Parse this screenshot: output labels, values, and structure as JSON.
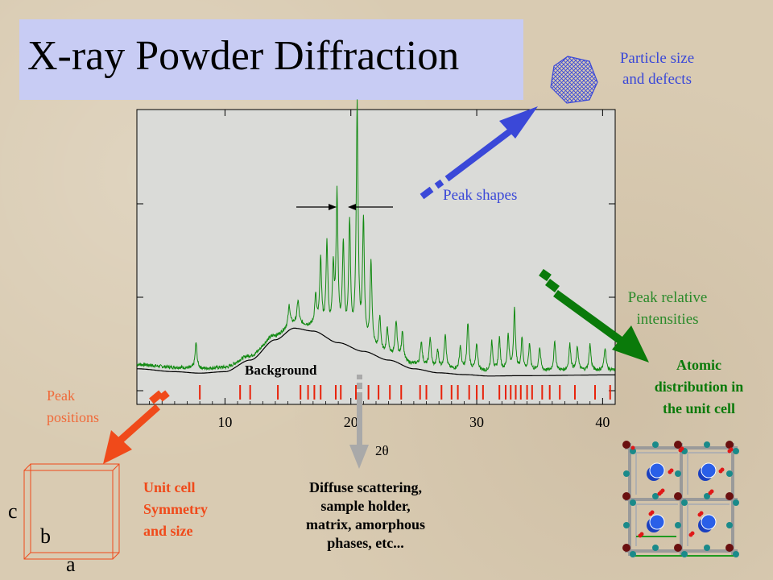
{
  "title": "X-ray Powder Diffraction",
  "labels": {
    "particle_size": [
      "Particle size",
      "and defects"
    ],
    "peak_shapes": "Peak shapes",
    "peak_relative": [
      "Peak relative",
      "intensities"
    ],
    "atomic_distribution": [
      "Atomic",
      "distribution in",
      "the unit cell"
    ],
    "peak_positions": [
      "Peak",
      "positions"
    ],
    "unit_cell": [
      "Unit cell",
      "Symmetry",
      "and size"
    ],
    "background": "Background",
    "diffuse": [
      "Diffuse scattering,",
      "sample holder,",
      "matrix, amorphous",
      "phases, etc..."
    ],
    "axis_c": "c",
    "axis_b": "b",
    "axis_a": "a"
  },
  "chart_data": {
    "type": "line",
    "xlabel": "2θ",
    "ylabel": "",
    "xlim": [
      3,
      41
    ],
    "xticks": [
      10,
      20,
      30,
      40
    ],
    "xtick_labels": [
      "10",
      "20",
      "30",
      "40"
    ],
    "peaks": [
      {
        "x": 7.7,
        "h": 0.09
      },
      {
        "x": 15.1,
        "h": 0.07
      },
      {
        "x": 15.8,
        "h": 0.08
      },
      {
        "x": 17.2,
        "h": 0.1
      },
      {
        "x": 17.6,
        "h": 0.23
      },
      {
        "x": 18.1,
        "h": 0.3
      },
      {
        "x": 18.6,
        "h": 0.22
      },
      {
        "x": 18.9,
        "h": 0.48
      },
      {
        "x": 19.4,
        "h": 0.31
      },
      {
        "x": 19.9,
        "h": 0.39
      },
      {
        "x": 20.5,
        "h": 0.82
      },
      {
        "x": 21.0,
        "h": 0.42
      },
      {
        "x": 21.6,
        "h": 0.29
      },
      {
        "x": 22.3,
        "h": 0.12
      },
      {
        "x": 22.9,
        "h": 0.09
      },
      {
        "x": 23.6,
        "h": 0.12
      },
      {
        "x": 24.1,
        "h": 0.1
      },
      {
        "x": 25.6,
        "h": 0.08
      },
      {
        "x": 26.3,
        "h": 0.1
      },
      {
        "x": 26.9,
        "h": 0.06
      },
      {
        "x": 27.5,
        "h": 0.12
      },
      {
        "x": 28.7,
        "h": 0.08
      },
      {
        "x": 29.3,
        "h": 0.16
      },
      {
        "x": 30.0,
        "h": 0.09
      },
      {
        "x": 31.2,
        "h": 0.1
      },
      {
        "x": 31.8,
        "h": 0.11
      },
      {
        "x": 32.5,
        "h": 0.12
      },
      {
        "x": 33.0,
        "h": 0.21
      },
      {
        "x": 33.6,
        "h": 0.11
      },
      {
        "x": 34.2,
        "h": 0.09
      },
      {
        "x": 35.0,
        "h": 0.08
      },
      {
        "x": 36.2,
        "h": 0.1
      },
      {
        "x": 37.4,
        "h": 0.09
      },
      {
        "x": 38.0,
        "h": 0.08
      },
      {
        "x": 39.0,
        "h": 0.09
      },
      {
        "x": 40.2,
        "h": 0.08
      }
    ],
    "background_curve": [
      [
        3,
        0.02
      ],
      [
        6,
        0.01
      ],
      [
        8,
        0.005
      ],
      [
        10,
        0.01
      ],
      [
        12,
        0.05
      ],
      [
        14,
        0.12
      ],
      [
        15.5,
        0.16
      ],
      [
        17,
        0.15
      ],
      [
        19,
        0.11
      ],
      [
        21,
        0.08
      ],
      [
        23,
        0.05
      ],
      [
        25,
        0.02
      ],
      [
        27,
        0.006
      ],
      [
        29,
        0.0
      ],
      [
        31,
        -0.005
      ],
      [
        33,
        -0.004
      ],
      [
        41,
        -0.001
      ]
    ],
    "reflections_2theta": [
      8.0,
      11.2,
      12.0,
      14.2,
      16.0,
      16.6,
      17.1,
      17.6,
      18.8,
      19.2,
      20.4,
      21.4,
      22.2,
      23.1,
      24.0,
      25.5,
      26.0,
      27.2,
      28.0,
      28.5,
      29.4,
      30.0,
      30.5,
      31.8,
      32.3,
      32.7,
      33.1,
      33.5,
      34.0,
      34.4,
      35.2,
      35.8,
      36.6,
      37.8,
      39.4,
      40.6
    ]
  }
}
